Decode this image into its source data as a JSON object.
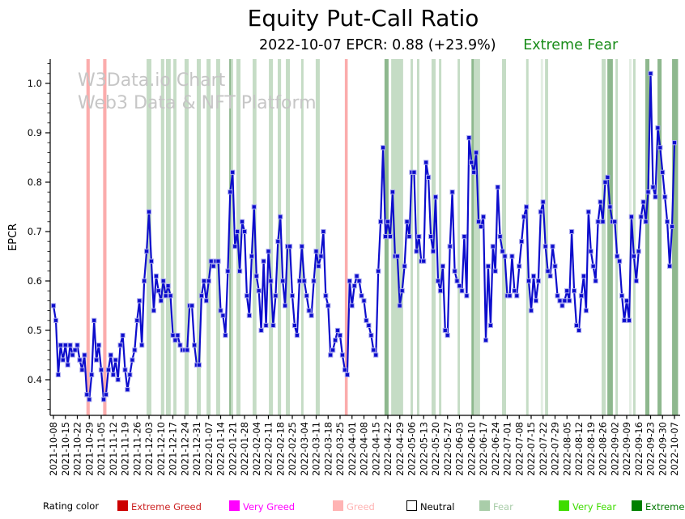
{
  "title": "Equity Put-Call Ratio",
  "subtitle": {
    "date_info": "2022-10-07 EPCR: 0.88 (+23.9%)",
    "rating": "Extreme Fear",
    "rating_color": "#1a8c1a"
  },
  "watermark": {
    "line1": "W3Data.io Chart",
    "line2": "Web3 Data & NFT Platform"
  },
  "legend": {
    "label": "Rating color",
    "items": [
      {
        "label": "Extreme Greed",
        "color": "#cc0000",
        "text_color": "#cc2222",
        "swatch_border": "#cc0000"
      },
      {
        "label": "Very Greed",
        "color": "#ff00ff",
        "text_color": "#ff00ff",
        "swatch_border": "#ff00ff"
      },
      {
        "label": "Greed",
        "color": "#ffb3b3",
        "text_color": "#ffb3b3",
        "swatch_border": "#ffb3b3"
      },
      {
        "label": "Neutral",
        "color": "#ffffff",
        "text_color": "#000000",
        "swatch_border": "#000000"
      },
      {
        "label": "Fear",
        "color": "#a9cda9",
        "text_color": "#a9cda9",
        "swatch_border": "#a9cda9"
      },
      {
        "label": "Very Fear",
        "color": "#3fdc00",
        "text_color": "#3fdc00",
        "swatch_border": "#3fdc00"
      },
      {
        "label": "Extreme Fear",
        "color": "#008000",
        "text_color": "#007700",
        "swatch_border": "#008000"
      }
    ]
  },
  "chart_data": {
    "type": "line",
    "title": "Equity Put-Call Ratio",
    "xlabel": "",
    "ylabel": "EPCR",
    "ylim": [
      0.328,
      1.049
    ],
    "yticks": [
      0.4,
      0.5,
      0.6,
      0.7,
      0.8,
      0.9,
      1.0
    ],
    "grid": false,
    "legend_position": "bottom",
    "line_color": "#0d0dcc",
    "marker": "square",
    "marker_edge_color": "#a9a9ef",
    "x_tick_labels": [
      "2021-10-08",
      "2021-10-15",
      "2021-10-22",
      "2021-10-29",
      "2021-11-05",
      "2021-11-12",
      "2021-11-19",
      "2021-11-26",
      "2021-12-03",
      "2021-12-10",
      "2021-12-17",
      "2021-12-24",
      "2021-12-31",
      "2022-01-07",
      "2022-01-14",
      "2022-01-21",
      "2022-01-28",
      "2022-02-04",
      "2022-02-11",
      "2022-02-18",
      "2022-02-25",
      "2022-03-04",
      "2022-03-11",
      "2022-03-18",
      "2022-03-25",
      "2022-04-01",
      "2022-04-08",
      "2022-04-15",
      "2022-04-22",
      "2022-04-29",
      "2022-05-06",
      "2022-05-13",
      "2022-05-20",
      "2022-05-27",
      "2022-06-03",
      "2022-06-10",
      "2022-06-17",
      "2022-06-24",
      "2022-07-01",
      "2022-07-08",
      "2022-07-15",
      "2022-07-22",
      "2022-07-29",
      "2022-08-05",
      "2022-08-12",
      "2022-08-19",
      "2022-08-26",
      "2022-09-02",
      "2022-09-09",
      "2022-09-16",
      "2022-09-23",
      "2022-09-30",
      "2022-10-07"
    ],
    "points_per_tick": 5,
    "series": [
      {
        "name": "EPCR",
        "values": [
          0.55,
          0.52,
          0.41,
          0.47,
          0.44,
          0.47,
          0.43,
          0.47,
          0.45,
          0.46,
          0.47,
          0.44,
          0.42,
          0.45,
          0.37,
          0.36,
          0.41,
          0.52,
          0.44,
          0.47,
          0.42,
          0.36,
          0.37,
          0.42,
          0.45,
          0.41,
          0.44,
          0.4,
          0.47,
          0.49,
          0.42,
          0.38,
          0.41,
          0.44,
          0.46,
          0.52,
          0.56,
          0.47,
          0.6,
          0.66,
          0.74,
          0.64,
          0.54,
          0.61,
          0.58,
          0.56,
          0.6,
          0.57,
          0.59,
          0.57,
          0.49,
          0.48,
          0.49,
          0.47,
          0.46,
          0.46,
          0.46,
          0.55,
          0.55,
          0.47,
          0.43,
          0.43,
          0.57,
          0.6,
          0.56,
          0.6,
          0.64,
          0.63,
          0.64,
          0.64,
          0.54,
          0.53,
          0.49,
          0.62,
          0.78,
          0.82,
          0.67,
          0.7,
          0.62,
          0.72,
          0.7,
          0.57,
          0.53,
          0.65,
          0.75,
          0.61,
          0.58,
          0.5,
          0.64,
          0.51,
          0.66,
          0.6,
          0.51,
          0.57,
          0.68,
          0.73,
          0.6,
          0.55,
          0.67,
          0.67,
          0.57,
          0.51,
          0.49,
          0.6,
          0.67,
          0.6,
          0.57,
          0.54,
          0.53,
          0.6,
          0.66,
          0.63,
          0.65,
          0.7,
          0.57,
          0.55,
          0.45,
          0.46,
          0.48,
          0.5,
          0.49,
          0.45,
          0.42,
          0.41,
          0.6,
          0.55,
          0.59,
          0.61,
          0.6,
          0.57,
          0.56,
          0.52,
          0.51,
          0.49,
          0.46,
          0.45,
          0.62,
          0.72,
          0.87,
          0.69,
          0.72,
          0.69,
          0.78,
          0.65,
          0.65,
          0.55,
          0.58,
          0.63,
          0.72,
          0.69,
          0.82,
          0.82,
          0.66,
          0.69,
          0.64,
          0.64,
          0.84,
          0.81,
          0.69,
          0.66,
          0.77,
          0.6,
          0.58,
          0.63,
          0.5,
          0.49,
          0.67,
          0.78,
          0.62,
          0.6,
          0.59,
          0.58,
          0.69,
          0.57,
          0.89,
          0.84,
          0.82,
          0.86,
          0.72,
          0.71,
          0.73,
          0.48,
          0.63,
          0.51,
          0.67,
          0.62,
          0.79,
          0.69,
          0.66,
          0.65,
          0.57,
          0.57,
          0.65,
          0.58,
          0.57,
          0.63,
          0.68,
          0.73,
          0.75,
          0.6,
          0.54,
          0.61,
          0.56,
          0.6,
          0.74,
          0.76,
          0.67,
          0.62,
          0.61,
          0.67,
          0.63,
          0.57,
          0.56,
          0.55,
          0.56,
          0.58,
          0.56,
          0.7,
          0.58,
          0.51,
          0.5,
          0.57,
          0.61,
          0.54,
          0.74,
          0.66,
          0.63,
          0.6,
          0.72,
          0.76,
          0.72,
          0.8,
          0.81,
          0.75,
          0.72,
          0.72,
          0.65,
          0.64,
          0.57,
          0.52,
          0.56,
          0.52,
          0.73,
          0.65,
          0.6,
          0.66,
          0.73,
          0.76,
          0.72,
          0.78,
          1.02,
          0.79,
          0.77,
          0.91,
          0.87,
          0.82,
          0.77,
          0.72,
          0.63,
          0.71,
          0.88
        ]
      }
    ],
    "background_bands": [
      {
        "start": 13.8,
        "end": 15.2,
        "rating": "greed"
      },
      {
        "start": 20.8,
        "end": 22.2,
        "rating": "greed"
      },
      {
        "start": 122.0,
        "end": 123.2,
        "rating": "greed"
      },
      {
        "start": 39.0,
        "end": 41.0,
        "rating": "fear"
      },
      {
        "start": 45.0,
        "end": 46.4,
        "rating": "fear"
      },
      {
        "start": 47.1,
        "end": 49.1,
        "rating": "fear"
      },
      {
        "start": 50.2,
        "end": 51.5,
        "rating": "fear"
      },
      {
        "start": 54.9,
        "end": 56.6,
        "rating": "fear"
      },
      {
        "start": 60.0,
        "end": 61.7,
        "rating": "fear"
      },
      {
        "start": 64.1,
        "end": 65.8,
        "rating": "fear"
      },
      {
        "start": 68.1,
        "end": 69.8,
        "rating": "fear"
      },
      {
        "start": 73.6,
        "end": 74.3,
        "rating": "fear_strong"
      },
      {
        "start": 74.3,
        "end": 75.2,
        "rating": "fear"
      },
      {
        "start": 76.6,
        "end": 78.3,
        "rating": "fear"
      },
      {
        "start": 83.4,
        "end": 85.0,
        "rating": "fear"
      },
      {
        "start": 90.2,
        "end": 91.9,
        "rating": "fear"
      },
      {
        "start": 93.9,
        "end": 95.3,
        "rating": "fear"
      },
      {
        "start": 97.3,
        "end": 99.0,
        "rating": "fear"
      },
      {
        "start": 103.7,
        "end": 104.7,
        "rating": "fear"
      },
      {
        "start": 109.8,
        "end": 111.5,
        "rating": "fear"
      },
      {
        "start": 138.6,
        "end": 140.3,
        "rating": "fear_strong"
      },
      {
        "start": 141.4,
        "end": 146.4,
        "rating": "fear"
      },
      {
        "start": 149.5,
        "end": 150.5,
        "rating": "fear"
      },
      {
        "start": 152.2,
        "end": 153.2,
        "rating": "fear"
      },
      {
        "start": 158.3,
        "end": 160.0,
        "rating": "fear"
      },
      {
        "start": 161.4,
        "end": 162.4,
        "rating": "fear"
      },
      {
        "start": 169.2,
        "end": 170.2,
        "rating": "fear"
      },
      {
        "start": 175.0,
        "end": 176.0,
        "rating": "fear_strong"
      },
      {
        "start": 176.0,
        "end": 178.6,
        "rating": "fear"
      },
      {
        "start": 187.8,
        "end": 189.5,
        "rating": "fear"
      },
      {
        "start": 197.9,
        "end": 198.9,
        "rating": "fear"
      },
      {
        "start": 204.0,
        "end": 205.0,
        "rating": "fear_light"
      },
      {
        "start": 205.8,
        "end": 207.1,
        "rating": "fear"
      },
      {
        "start": 229.5,
        "end": 231.2,
        "rating": "fear"
      },
      {
        "start": 231.9,
        "end": 234.2,
        "rating": "fear_strong"
      },
      {
        "start": 235.3,
        "end": 236.3,
        "rating": "fear"
      },
      {
        "start": 241.0,
        "end": 242.0,
        "rating": "fear_light"
      },
      {
        "start": 242.7,
        "end": 243.7,
        "rating": "fear"
      },
      {
        "start": 247.8,
        "end": 249.5,
        "rating": "fear_strong"
      },
      {
        "start": 252.9,
        "end": 254.6,
        "rating": "fear_strong"
      },
      {
        "start": 259.0,
        "end": 261.5,
        "rating": "fear_strong"
      }
    ],
    "band_colors": {
      "greed": "rgba(248,90,90,0.50)",
      "fear": "rgba(116,172,116,0.42)",
      "fear_strong": "rgba(72,140,72,0.62)",
      "fear_light": "rgba(116,172,116,0.20)"
    }
  }
}
